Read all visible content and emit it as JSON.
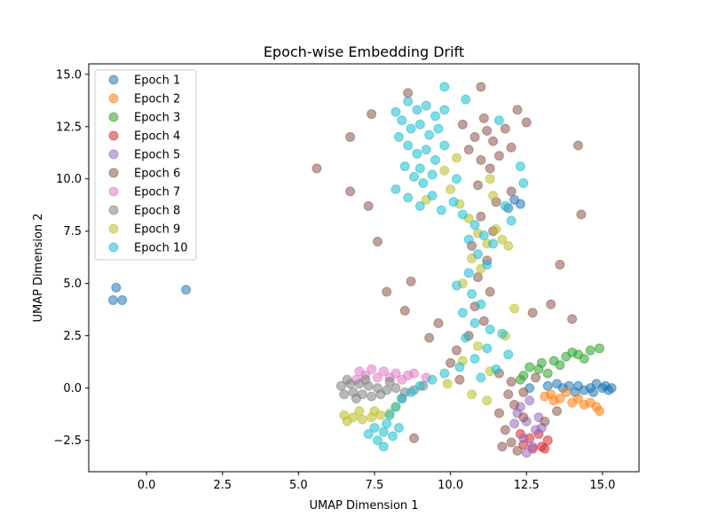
{
  "chart_data": {
    "type": "scatter",
    "title": "Epoch-wise Embedding Drift",
    "xlabel": "UMAP Dimension 1",
    "ylabel": "UMAP Dimension 2",
    "xlim": [
      -1.9,
      16.2
    ],
    "ylim": [
      -4.0,
      15.5
    ],
    "xticks": [
      0.0,
      2.5,
      5.0,
      7.5,
      10.0,
      12.5,
      15.0
    ],
    "xtick_labels": [
      "0.0",
      "2.5",
      "5.0",
      "7.5",
      "10.0",
      "12.5",
      "15.0"
    ],
    "yticks": [
      -2.5,
      0.0,
      2.5,
      5.0,
      7.5,
      10.0,
      12.5,
      15.0
    ],
    "ytick_labels": [
      "−2.5",
      "0.0",
      "2.5",
      "5.0",
      "7.5",
      "10.0",
      "12.5",
      "15.0"
    ],
    "grid": false,
    "legend_position": "top-left",
    "marker_alpha": 0.55,
    "series": [
      {
        "name": "Epoch 1",
        "color": "#1f77b4",
        "points": [
          [
            -1.0,
            4.8
          ],
          [
            -1.1,
            4.2
          ],
          [
            -0.8,
            4.2
          ],
          [
            1.3,
            4.7
          ],
          [
            12.1,
            9.0
          ],
          [
            12.3,
            8.8
          ],
          [
            11.9,
            8.6
          ],
          [
            14.2,
            0.1
          ],
          [
            14.6,
            0.0
          ],
          [
            15.0,
            0.0
          ],
          [
            15.2,
            -0.1
          ],
          [
            14.8,
            0.2
          ],
          [
            14.4,
            -0.1
          ],
          [
            13.9,
            0.1
          ],
          [
            13.5,
            0.2
          ],
          [
            15.1,
            0.1
          ],
          [
            13.7,
            0.0
          ],
          [
            14.1,
            -0.2
          ],
          [
            14.7,
            -0.2
          ],
          [
            15.3,
            0.0
          ],
          [
            12.6,
            0.0
          ],
          [
            13.2,
            0.1
          ]
        ]
      },
      {
        "name": "Epoch 2",
        "color": "#ff7f0e",
        "points": [
          [
            13.3,
            -0.3
          ],
          [
            13.6,
            -0.5
          ],
          [
            14.0,
            -0.7
          ],
          [
            14.4,
            -0.8
          ],
          [
            14.8,
            -0.9
          ],
          [
            13.8,
            -0.2
          ],
          [
            14.2,
            -0.5
          ],
          [
            14.6,
            -0.7
          ],
          [
            13.4,
            -0.6
          ],
          [
            14.9,
            -1.1
          ],
          [
            13.1,
            -0.4
          ]
        ]
      },
      {
        "name": "Epoch 3",
        "color": "#2ca02c",
        "points": [
          [
            12.6,
            1.0
          ],
          [
            13.0,
            1.2
          ],
          [
            13.4,
            1.3
          ],
          [
            13.8,
            1.5
          ],
          [
            14.2,
            1.6
          ],
          [
            14.6,
            1.8
          ],
          [
            14.9,
            1.9
          ],
          [
            12.9,
            0.9
          ],
          [
            13.6,
            1.1
          ],
          [
            14.4,
            1.4
          ],
          [
            13.2,
            0.7
          ],
          [
            12.4,
            0.6
          ],
          [
            14.0,
            1.7
          ],
          [
            12.3,
            0.4
          ]
        ]
      },
      {
        "name": "Epoch 4",
        "color": "#d62728",
        "points": [
          [
            12.4,
            -2.7
          ],
          [
            12.7,
            -2.9
          ],
          [
            13.0,
            -2.8
          ],
          [
            13.2,
            -2.5
          ],
          [
            12.9,
            -2.2
          ],
          [
            12.6,
            -2.4
          ],
          [
            13.1,
            -2.9
          ],
          [
            12.3,
            -2.2
          ]
        ]
      },
      {
        "name": "Epoch 5",
        "color": "#9467bd",
        "points": [
          [
            12.2,
            -1.2
          ],
          [
            12.5,
            -1.6
          ],
          [
            12.8,
            -2.0
          ],
          [
            12.4,
            -2.4
          ],
          [
            12.7,
            -2.8
          ],
          [
            12.9,
            -1.4
          ],
          [
            12.3,
            -0.9
          ],
          [
            12.6,
            -0.6
          ],
          [
            13.0,
            -1.9
          ],
          [
            12.5,
            -3.1
          ],
          [
            12.1,
            -1.7
          ]
        ]
      },
      {
        "name": "Epoch 6",
        "color": "#8c564b",
        "points": [
          [
            11.6,
            -1.2
          ],
          [
            11.8,
            -2.0
          ],
          [
            12.0,
            -2.6
          ],
          [
            12.2,
            -3.0
          ],
          [
            11.7,
            -2.8
          ],
          [
            12.4,
            -1.4
          ],
          [
            12.1,
            -0.8
          ],
          [
            11.9,
            -0.3
          ],
          [
            10.8,
            12.0
          ],
          [
            11.2,
            12.3
          ],
          [
            10.6,
            11.4
          ],
          [
            11.4,
            11.8
          ],
          [
            11.0,
            10.9
          ],
          [
            11.6,
            11.1
          ],
          [
            11.1,
            12.9
          ],
          [
            12.0,
            11.5
          ],
          [
            10.4,
            12.6
          ],
          [
            11.8,
            12.4
          ],
          [
            11.3,
            10.5
          ],
          [
            10.9,
            9.7
          ],
          [
            11.5,
            8.9
          ],
          [
            11.0,
            8.2
          ],
          [
            11.4,
            7.5
          ],
          [
            10.7,
            6.8
          ],
          [
            11.2,
            6.1
          ],
          [
            10.9,
            5.3
          ],
          [
            11.3,
            4.6
          ],
          [
            10.8,
            3.9
          ],
          [
            11.1,
            3.2
          ],
          [
            10.6,
            2.5
          ],
          [
            10.2,
            1.8
          ],
          [
            10.0,
            1.2
          ],
          [
            11.6,
            0.7
          ],
          [
            12.0,
            0.3
          ],
          [
            12.4,
            -0.2
          ],
          [
            12.8,
            0.5
          ],
          [
            9.6,
            3.1
          ],
          [
            9.3,
            2.4
          ],
          [
            5.6,
            10.5
          ],
          [
            6.7,
            12.0
          ],
          [
            7.4,
            13.1
          ],
          [
            8.6,
            14.1
          ],
          [
            12.2,
            13.3
          ],
          [
            11.0,
            14.4
          ],
          [
            12.5,
            12.7
          ],
          [
            14.2,
            11.6
          ],
          [
            14.3,
            8.3
          ],
          [
            12.0,
            9.4
          ],
          [
            13.3,
            4.0
          ],
          [
            12.7,
            3.6
          ],
          [
            13.6,
            5.9
          ],
          [
            14.0,
            3.3
          ],
          [
            8.5,
            3.7
          ],
          [
            8.7,
            5.1
          ],
          [
            7.9,
            4.6
          ],
          [
            6.7,
            9.4
          ],
          [
            7.3,
            8.7
          ],
          [
            7.6,
            7.0
          ],
          [
            8.8,
            -2.4
          ],
          [
            13.1,
            -1.6
          ],
          [
            13.5,
            -1.1
          ],
          [
            10.3,
            0.4
          ]
        ]
      },
      {
        "name": "Epoch 7",
        "color": "#e377c2",
        "points": [
          [
            7.0,
            0.8
          ],
          [
            7.4,
            0.9
          ],
          [
            7.8,
            0.8
          ],
          [
            8.2,
            0.7
          ],
          [
            8.6,
            0.6
          ],
          [
            7.2,
            0.6
          ],
          [
            7.6,
            0.5
          ],
          [
            8.0,
            0.5
          ],
          [
            8.4,
            0.4
          ],
          [
            6.9,
            0.4
          ],
          [
            8.8,
            0.7
          ],
          [
            9.2,
            0.5
          ]
        ]
      },
      {
        "name": "Epoch 8",
        "color": "#7f7f7f",
        "points": [
          [
            6.4,
            0.1
          ],
          [
            6.7,
            0.2
          ],
          [
            7.0,
            0.2
          ],
          [
            7.3,
            0.1
          ],
          [
            7.6,
            0.0
          ],
          [
            7.9,
            -0.1
          ],
          [
            8.2,
            0.0
          ],
          [
            8.5,
            -0.2
          ],
          [
            6.5,
            -0.3
          ],
          [
            6.8,
            -0.2
          ],
          [
            7.1,
            -0.3
          ],
          [
            7.4,
            -0.4
          ],
          [
            7.7,
            -0.3
          ],
          [
            6.6,
            0.4
          ],
          [
            7.2,
            0.4
          ],
          [
            8.0,
            0.3
          ],
          [
            8.8,
            -0.1
          ],
          [
            9.1,
            0.1
          ],
          [
            8.4,
            -0.5
          ],
          [
            6.9,
            -0.5
          ]
        ]
      },
      {
        "name": "Epoch 9",
        "color": "#bcbd22",
        "points": [
          [
            6.5,
            -1.3
          ],
          [
            6.8,
            -1.4
          ],
          [
            7.1,
            -1.5
          ],
          [
            7.4,
            -1.4
          ],
          [
            7.7,
            -1.3
          ],
          [
            8.0,
            -1.2
          ],
          [
            6.6,
            -1.6
          ],
          [
            7.0,
            -1.1
          ],
          [
            7.5,
            -1.1
          ],
          [
            8.2,
            -0.9
          ],
          [
            10.0,
            9.5
          ],
          [
            10.3,
            8.8
          ],
          [
            10.6,
            8.1
          ],
          [
            10.9,
            7.4
          ],
          [
            11.2,
            6.9
          ],
          [
            10.7,
            6.2
          ],
          [
            11.5,
            7.6
          ],
          [
            11.0,
            5.7
          ],
          [
            10.4,
            5.0
          ],
          [
            9.8,
            10.4
          ],
          [
            10.2,
            11.0
          ],
          [
            11.3,
            10.0
          ],
          [
            11.7,
            7.1
          ],
          [
            9.2,
            9.0
          ],
          [
            11.4,
            9.2
          ],
          [
            11.9,
            6.8
          ],
          [
            12.1,
            3.8
          ],
          [
            11.8,
            2.5
          ],
          [
            10.9,
            2.0
          ],
          [
            11.3,
            0.8
          ],
          [
            9.9,
            0.2
          ],
          [
            10.7,
            -0.3
          ],
          [
            11.2,
            -0.6
          ],
          [
            10.4,
            1.3
          ]
        ]
      },
      {
        "name": "Epoch 10",
        "color": "#17becf",
        "points": [
          [
            8.6,
            13.7
          ],
          [
            8.9,
            13.3
          ],
          [
            9.2,
            13.5
          ],
          [
            9.5,
            13.0
          ],
          [
            9.8,
            13.3
          ],
          [
            8.4,
            12.8
          ],
          [
            8.7,
            12.4
          ],
          [
            9.0,
            12.6
          ],
          [
            9.3,
            12.1
          ],
          [
            9.6,
            12.4
          ],
          [
            8.3,
            12.0
          ],
          [
            8.6,
            11.6
          ],
          [
            8.9,
            11.2
          ],
          [
            9.2,
            11.4
          ],
          [
            9.5,
            10.9
          ],
          [
            9.8,
            11.6
          ],
          [
            8.5,
            10.6
          ],
          [
            8.8,
            10.1
          ],
          [
            9.1,
            9.8
          ],
          [
            9.4,
            10.2
          ],
          [
            8.2,
            9.5
          ],
          [
            8.6,
            9.1
          ],
          [
            9.0,
            8.7
          ],
          [
            9.4,
            9.2
          ],
          [
            9.7,
            8.5
          ],
          [
            10.1,
            8.9
          ],
          [
            10.4,
            8.3
          ],
          [
            10.8,
            7.8
          ],
          [
            11.1,
            7.3
          ],
          [
            10.6,
            7.1
          ],
          [
            11.4,
            6.9
          ],
          [
            10.9,
            6.4
          ],
          [
            11.2,
            5.9
          ],
          [
            10.6,
            5.5
          ],
          [
            10.2,
            4.9
          ],
          [
            10.7,
            4.5
          ],
          [
            11.0,
            4.0
          ],
          [
            10.4,
            3.6
          ],
          [
            10.8,
            3.1
          ],
          [
            11.3,
            2.8
          ],
          [
            10.5,
            2.4
          ],
          [
            11.7,
            2.6
          ],
          [
            11.2,
            1.9
          ],
          [
            11.9,
            1.6
          ],
          [
            10.8,
            1.4
          ],
          [
            10.3,
            1.0
          ],
          [
            9.8,
            0.7
          ],
          [
            9.4,
            0.4
          ],
          [
            9.0,
            0.1
          ],
          [
            8.7,
            -0.2
          ],
          [
            8.4,
            -0.5
          ],
          [
            8.2,
            -0.9
          ],
          [
            8.0,
            -1.3
          ],
          [
            7.9,
            -1.7
          ],
          [
            7.8,
            -2.1
          ],
          [
            7.6,
            -2.5
          ],
          [
            7.8,
            -2.8
          ],
          [
            8.1,
            -2.3
          ],
          [
            8.3,
            -1.9
          ],
          [
            7.5,
            -1.9
          ],
          [
            7.3,
            -2.2
          ],
          [
            11.5,
            0.9
          ],
          [
            11.0,
            0.5
          ],
          [
            12.4,
            9.8
          ],
          [
            11.8,
            8.7
          ],
          [
            12.0,
            8.0
          ],
          [
            9.8,
            14.4
          ],
          [
            10.5,
            13.8
          ],
          [
            8.2,
            13.2
          ],
          [
            11.6,
            12.8
          ],
          [
            12.3,
            10.6
          ],
          [
            9.0,
            10.5
          ],
          [
            10.2,
            10.0
          ]
        ]
      }
    ]
  }
}
